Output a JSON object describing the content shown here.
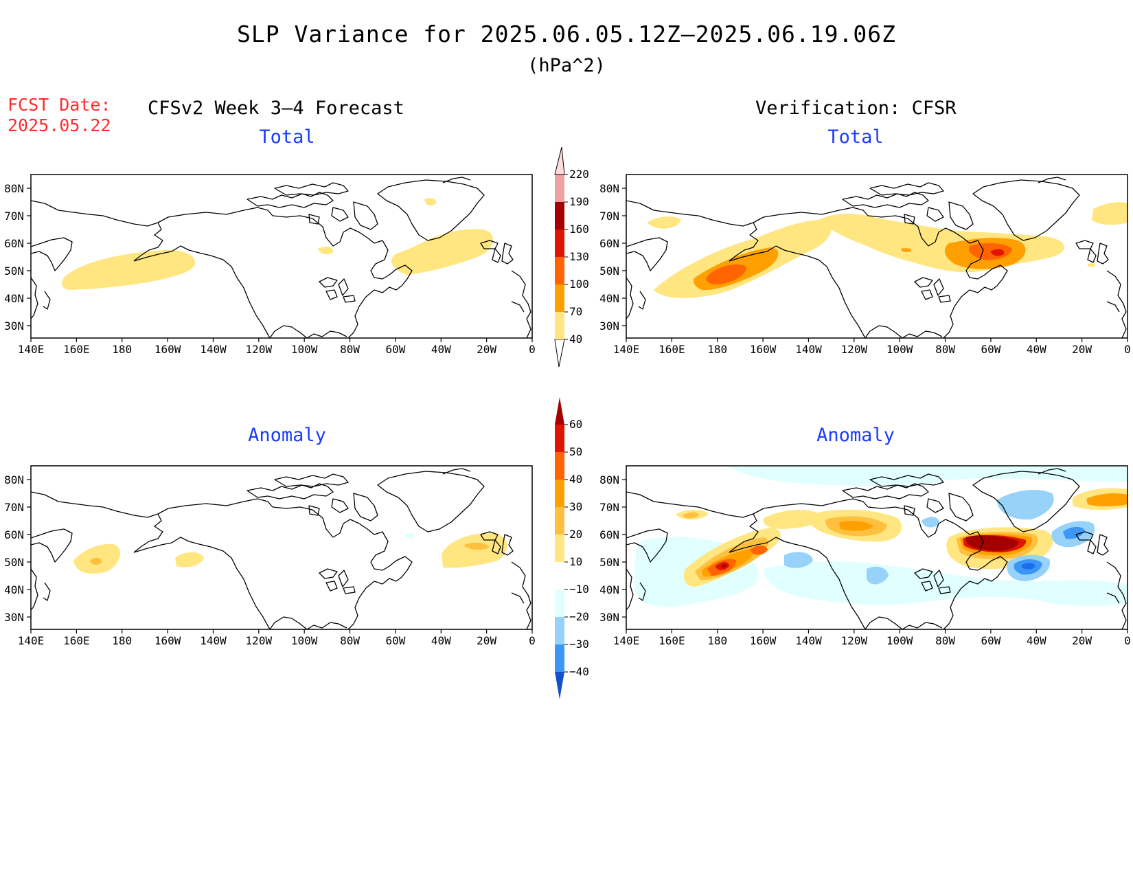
{
  "title": "SLP Variance for 2025.06.05.12Z—2025.06.19.06Z",
  "units": "(hPa^2)",
  "fcst_date_label": "FCST Date:",
  "fcst_date_value": "2025.05.22",
  "left_header": "CFSv2 Week 3—4 Forecast",
  "right_header": "Verification: CFSR",
  "panels": [
    {
      "id": "fcst-total",
      "title": "Total"
    },
    {
      "id": "verif-total",
      "title": "Total"
    },
    {
      "id": "fcst-anomaly",
      "title": "Anomaly"
    },
    {
      "id": "verif-anomaly",
      "title": "Anomaly"
    }
  ],
  "map_axes": {
    "lon_labels": [
      "140E",
      "160E",
      "180",
      "160W",
      "140W",
      "120W",
      "100W",
      "80W",
      "60W",
      "40W",
      "20W",
      "0"
    ],
    "lat_labels": [
      "80N",
      "70N",
      "60N",
      "50N",
      "40N",
      "30N"
    ]
  },
  "colorbars": {
    "total": {
      "labels": [
        "40",
        "70",
        "100",
        "130",
        "160",
        "190",
        "220"
      ],
      "colors": [
        "#ffffff",
        "#ffe680",
        "#ffa000",
        "#ff6400",
        "#e11400",
        "#a50000",
        "#f0a0a0",
        "#ffdcdc"
      ]
    },
    "anomaly": {
      "labels": [
        "60",
        "50",
        "40",
        "30",
        "20",
        "10",
        "−10",
        "−20",
        "−30",
        "−40"
      ],
      "colors": [
        "#a50000",
        "#e11400",
        "#ff6400",
        "#ffa000",
        "#ffc040",
        "#ffe680",
        "#ffffff",
        "#e1ffff",
        "#96d2fa",
        "#3c96f5",
        "#1e6eeb"
      ]
    },
    "anomaly_min_color": "#1450c8"
  }
}
